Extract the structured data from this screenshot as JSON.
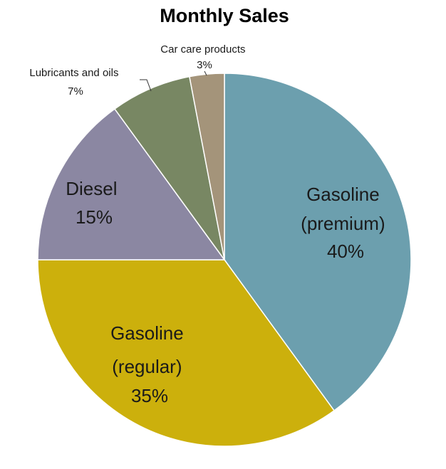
{
  "chart_data": {
    "type": "pie",
    "title": "Monthly Sales",
    "slices": [
      {
        "name": "Gasoline (premium)",
        "label_lines": [
          "Gasoline",
          "(premium)"
        ],
        "value_label": "40%",
        "value": 40,
        "color": "#6c9fae"
      },
      {
        "name": "Gasoline (regular)",
        "label_lines": [
          "Gasoline",
          "(regular)"
        ],
        "value_label": "35%",
        "value": 35,
        "color": "#ccb00c"
      },
      {
        "name": "Diesel",
        "label_lines": [
          "Diesel"
        ],
        "value_label": "15%",
        "value": 15,
        "color": "#8b87a2"
      },
      {
        "name": "Lubricants and oils",
        "label_lines": [
          "Lubricants and oils"
        ],
        "value_label": "7%",
        "value": 7,
        "color": "#788763"
      },
      {
        "name": "Car care products",
        "label_lines": [
          "Car care products"
        ],
        "value_label": "3%",
        "value": 3,
        "color": "#a4947a"
      }
    ]
  }
}
